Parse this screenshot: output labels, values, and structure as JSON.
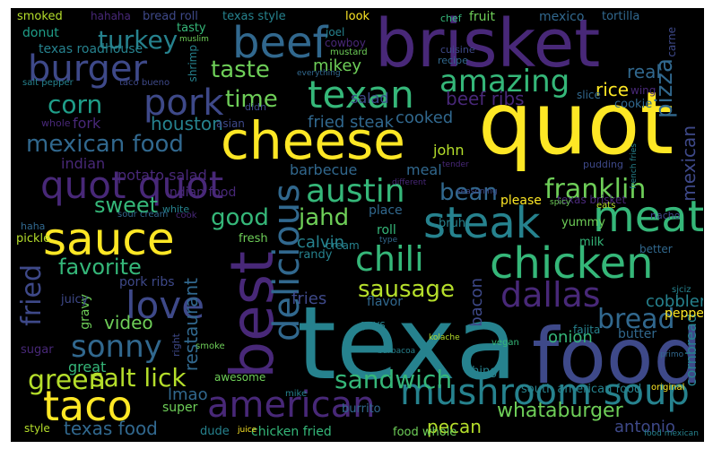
{
  "palette": {
    "background": "#000000",
    "yellow": "#fde725",
    "lime": "#b5de2b",
    "green": "#6ece58",
    "teal_green": "#35b779",
    "teal": "#1f9e89",
    "blue_teal": "#26828e",
    "blue": "#31688e",
    "indigo": "#3e4989",
    "purple": "#482878",
    "dark_purple": "#440154"
  },
  "words": [
    {
      "text": "quot",
      "color": "#fde725"
    },
    {
      "text": "brisket",
      "color": "#482878"
    },
    {
      "text": "texa",
      "color": "#26828e"
    },
    {
      "text": "food",
      "color": "#3e4989"
    },
    {
      "text": "cheese",
      "color": "#fde725"
    },
    {
      "text": "best",
      "color": "#482878"
    },
    {
      "text": "meat",
      "color": "#35b779"
    },
    {
      "text": "sauce",
      "color": "#fde725"
    },
    {
      "text": "steak",
      "color": "#26828e"
    },
    {
      "text": "chicken",
      "color": "#35b779"
    },
    {
      "text": "beef",
      "color": "#31688e"
    },
    {
      "text": "texan",
      "color": "#35b779"
    },
    {
      "text": "quot quot",
      "color": "#482878"
    },
    {
      "text": "burger",
      "color": "#3e4989"
    },
    {
      "text": "pork",
      "color": "#3e4989"
    },
    {
      "text": "taco",
      "color": "#fde725"
    },
    {
      "text": "love",
      "color": "#3e4989"
    },
    {
      "text": "american",
      "color": "#482878"
    },
    {
      "text": "mushroom soup",
      "color": "#26828e"
    },
    {
      "text": "delicious",
      "color": "#31688e"
    },
    {
      "text": "austin",
      "color": "#35b779"
    },
    {
      "text": "chili",
      "color": "#35b779"
    },
    {
      "text": "dallas",
      "color": "#482878"
    },
    {
      "text": "sonny",
      "color": "#31688e"
    },
    {
      "text": "amazing",
      "color": "#35b779"
    },
    {
      "text": "franklin",
      "color": "#6ece58"
    },
    {
      "text": "mexican food",
      "color": "#31688e"
    },
    {
      "text": "salt lick",
      "color": "#b5de2b"
    },
    {
      "text": "green",
      "color": "#b5de2b"
    },
    {
      "text": "sandwich",
      "color": "#35b779"
    },
    {
      "text": "bread",
      "color": "#31688e"
    },
    {
      "text": "favorite",
      "color": "#35b779"
    },
    {
      "text": "sausage",
      "color": "#b5de2b"
    },
    {
      "text": "turkey",
      "color": "#26828e"
    },
    {
      "text": "corn",
      "color": "#1f9e89"
    },
    {
      "text": "taste",
      "color": "#6ece58"
    },
    {
      "text": "time",
      "color": "#6ece58"
    },
    {
      "text": "pizza",
      "color": "#31688e"
    },
    {
      "text": "good",
      "color": "#35b779"
    },
    {
      "text": "jahd",
      "color": "#6ece58"
    },
    {
      "text": "fried",
      "color": "#3e4989"
    },
    {
      "text": "sweet",
      "color": "#35b779"
    },
    {
      "text": "bean",
      "color": "#31688e"
    },
    {
      "text": "whataburger",
      "color": "#6ece58"
    },
    {
      "text": "texas food",
      "color": "#31688e"
    },
    {
      "text": "mikey",
      "color": "#6ece58"
    },
    {
      "text": "houston",
      "color": "#26828e"
    },
    {
      "text": "beef ribs",
      "color": "#482878"
    },
    {
      "text": "rice",
      "color": "#fde725"
    },
    {
      "text": "real",
      "color": "#31688e"
    },
    {
      "text": "video",
      "color": "#6ece58"
    },
    {
      "text": "pecan",
      "color": "#b5de2b"
    },
    {
      "text": "restaurant",
      "color": "#31688e"
    },
    {
      "text": "mexican",
      "color": "#3e4989"
    },
    {
      "text": "fried steak",
      "color": "#31688e"
    },
    {
      "text": "cooked",
      "color": "#31688e"
    },
    {
      "text": "calvin",
      "color": "#26828e"
    },
    {
      "text": "fries",
      "color": "#3e4989"
    },
    {
      "text": "onion",
      "color": "#35b779"
    },
    {
      "text": "cobbler",
      "color": "#26828e"
    },
    {
      "text": "lmao",
      "color": "#31688e"
    },
    {
      "text": "bacon",
      "color": "#3e4989"
    },
    {
      "text": "antonio",
      "color": "#3e4989"
    },
    {
      "text": "salad",
      "color": "#3e4989"
    },
    {
      "text": "fork",
      "color": "#482878"
    },
    {
      "text": "cornbread",
      "color": "#26828e"
    },
    {
      "text": "john",
      "color": "#b5de2b"
    },
    {
      "text": "meal",
      "color": "#31688e"
    },
    {
      "text": "barbecue",
      "color": "#31688e"
    },
    {
      "text": "potato salad",
      "color": "#482878"
    },
    {
      "text": "indian",
      "color": "#482878"
    },
    {
      "text": "indian food",
      "color": "#482878"
    },
    {
      "text": "texas roadhouse",
      "color": "#26828e"
    },
    {
      "text": "donut",
      "color": "#1f9e89"
    },
    {
      "text": "smoked",
      "color": "#b5de2b"
    },
    {
      "text": "bread roll",
      "color": "#3e4989"
    },
    {
      "text": "texas style",
      "color": "#26828e"
    },
    {
      "text": "fruit",
      "color": "#6ece58"
    },
    {
      "text": "mexico",
      "color": "#31688e"
    },
    {
      "text": "tortilla",
      "color": "#31688e"
    },
    {
      "text": "tasty",
      "color": "#35b779"
    },
    {
      "text": "look",
      "color": "#fde725"
    },
    {
      "text": "chef",
      "color": "#35b779"
    },
    {
      "text": "shrimp",
      "color": "#26828e"
    },
    {
      "text": "cowboy",
      "color": "#482878"
    },
    {
      "text": "joel",
      "color": "#26828e"
    },
    {
      "text": "mustard",
      "color": "#6ece58"
    },
    {
      "text": "cuisine",
      "color": "#3e4989"
    },
    {
      "text": "recipe",
      "color": "#31688e"
    },
    {
      "text": "carne",
      "color": "#3e4989"
    },
    {
      "text": "slice",
      "color": "#31688e"
    },
    {
      "text": "wing",
      "color": "#482878"
    },
    {
      "text": "cookie",
      "color": "#31688e"
    },
    {
      "text": "gravy",
      "color": "#6ece58"
    },
    {
      "text": "pork ribs",
      "color": "#3e4989"
    },
    {
      "text": "juicy",
      "color": "#3e4989"
    },
    {
      "text": "pickle",
      "color": "#b5de2b"
    },
    {
      "text": "randy",
      "color": "#26828e"
    },
    {
      "text": "cream",
      "color": "#26828e"
    },
    {
      "text": "flavor",
      "color": "#31688e"
    },
    {
      "text": "roll",
      "color": "#35b779"
    },
    {
      "text": "place",
      "color": "#31688e"
    },
    {
      "text": "please",
      "color": "#fde725"
    },
    {
      "text": "yummy",
      "color": "#6ece58"
    },
    {
      "text": "milk",
      "color": "#35b779"
    },
    {
      "text": "pepper",
      "color": "#fde725"
    },
    {
      "text": "fajita",
      "color": "#26828e"
    },
    {
      "text": "butter",
      "color": "#31688e"
    },
    {
      "text": "guys",
      "color": "#26828e"
    },
    {
      "text": "sugar",
      "color": "#482878"
    },
    {
      "text": "great",
      "color": "#35b779"
    },
    {
      "text": "super",
      "color": "#6ece58"
    },
    {
      "text": "dude",
      "color": "#26828e"
    },
    {
      "text": "chicken fried",
      "color": "#35b779"
    },
    {
      "text": "food whole",
      "color": "#6ece58"
    },
    {
      "text": "south american food",
      "color": "#26828e"
    },
    {
      "text": "thing",
      "color": "#26828e"
    },
    {
      "text": "burrito",
      "color": "#31688e"
    },
    {
      "text": "awesome",
      "color": "#6ece58"
    },
    {
      "text": "style",
      "color": "#b5de2b"
    },
    {
      "text": "fresh",
      "color": "#6ece58"
    },
    {
      "text": "texas brisket",
      "color": "#482878"
    },
    {
      "text": "hahaha",
      "color": "#482878"
    },
    {
      "text": "whole",
      "color": "#482878"
    },
    {
      "text": "asian",
      "color": "#3e4989"
    },
    {
      "text": "didn",
      "color": "#3e4989"
    },
    {
      "text": "white",
      "color": "#26828e"
    },
    {
      "text": "sour cream",
      "color": "#31688e"
    },
    {
      "text": "haha",
      "color": "#31688e"
    },
    {
      "text": "cook",
      "color": "#482878"
    },
    {
      "text": "right",
      "color": "#3e4989"
    },
    {
      "text": "smoke",
      "color": "#6ece58"
    },
    {
      "text": "mike",
      "color": "#26828e"
    },
    {
      "text": "juice",
      "color": "#fde725"
    },
    {
      "text": "spicy",
      "color": "#6ece58"
    },
    {
      "text": "pudding",
      "color": "#3e4989"
    },
    {
      "text": "french fries",
      "color": "#26828e"
    },
    {
      "text": "nacho",
      "color": "#3e4989"
    },
    {
      "text": "eats",
      "color": "#b5de2b"
    },
    {
      "text": "better",
      "color": "#31688e"
    },
    {
      "text": "vegan",
      "color": "#35b779"
    },
    {
      "text": "original",
      "color": "#fde725"
    },
    {
      "text": "taco bueno",
      "color": "#3e4989"
    },
    {
      "text": "salt pepper",
      "color": "#26828e"
    },
    {
      "text": "muslim",
      "color": "#6ece58"
    },
    {
      "text": "seasoning",
      "color": "#3e4989"
    },
    {
      "text": "kolache",
      "color": "#b5de2b"
    },
    {
      "text": "barbacoa",
      "color": "#26828e"
    },
    {
      "text": "tender",
      "color": "#482878"
    },
    {
      "text": "everything",
      "color": "#31688e"
    },
    {
      "text": "different",
      "color": "#482878"
    },
    {
      "text": "bruh",
      "color": "#26828e"
    },
    {
      "text": "type",
      "color": "#31688e"
    },
    {
      "text": "sjciz",
      "color": "#26828e"
    },
    {
      "text": "primo",
      "color": "#31688e"
    },
    {
      "text": "food mexican",
      "color": "#26828e"
    }
  ]
}
